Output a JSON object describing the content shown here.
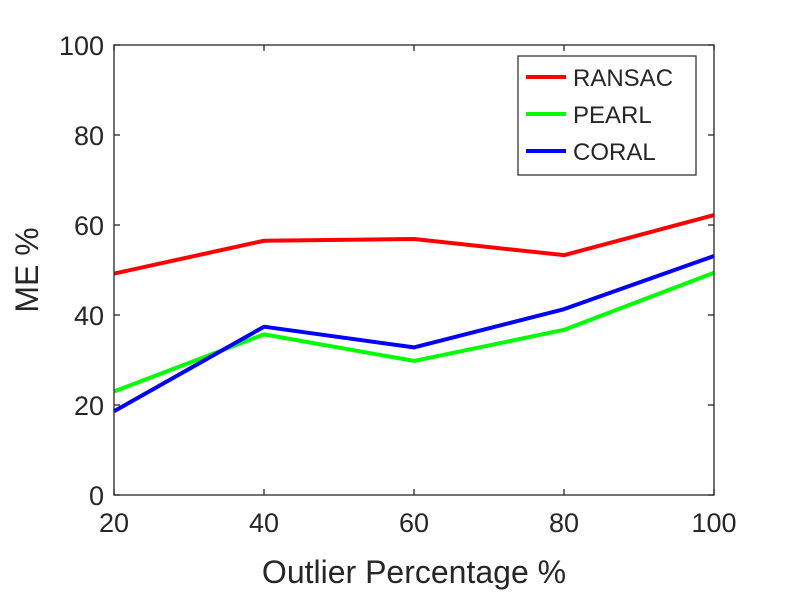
{
  "chart_data": {
    "type": "line",
    "title": "",
    "xlabel": "Outlier Percentage %",
    "ylabel": "ME %",
    "x": [
      20,
      40,
      60,
      80,
      100
    ],
    "xlim": [
      20,
      100
    ],
    "ylim": [
      0,
      100
    ],
    "xticks": [
      "20",
      "40",
      "60",
      "80",
      "100"
    ],
    "yticks": [
      "0",
      "20",
      "40",
      "60",
      "80",
      "100"
    ],
    "grid": false,
    "legend_position": "top-right",
    "series": [
      {
        "name": "RANSAC",
        "color": "#ff0000",
        "values": [
          49.2,
          56.5,
          56.9,
          53.3,
          62.2
        ]
      },
      {
        "name": "PEARL",
        "color": "#00ff00",
        "values": [
          23.0,
          35.7,
          29.8,
          36.7,
          49.4
        ]
      },
      {
        "name": "CORAL",
        "color": "#0000ff",
        "values": [
          18.6,
          37.4,
          32.8,
          41.3,
          53.1
        ]
      }
    ]
  }
}
